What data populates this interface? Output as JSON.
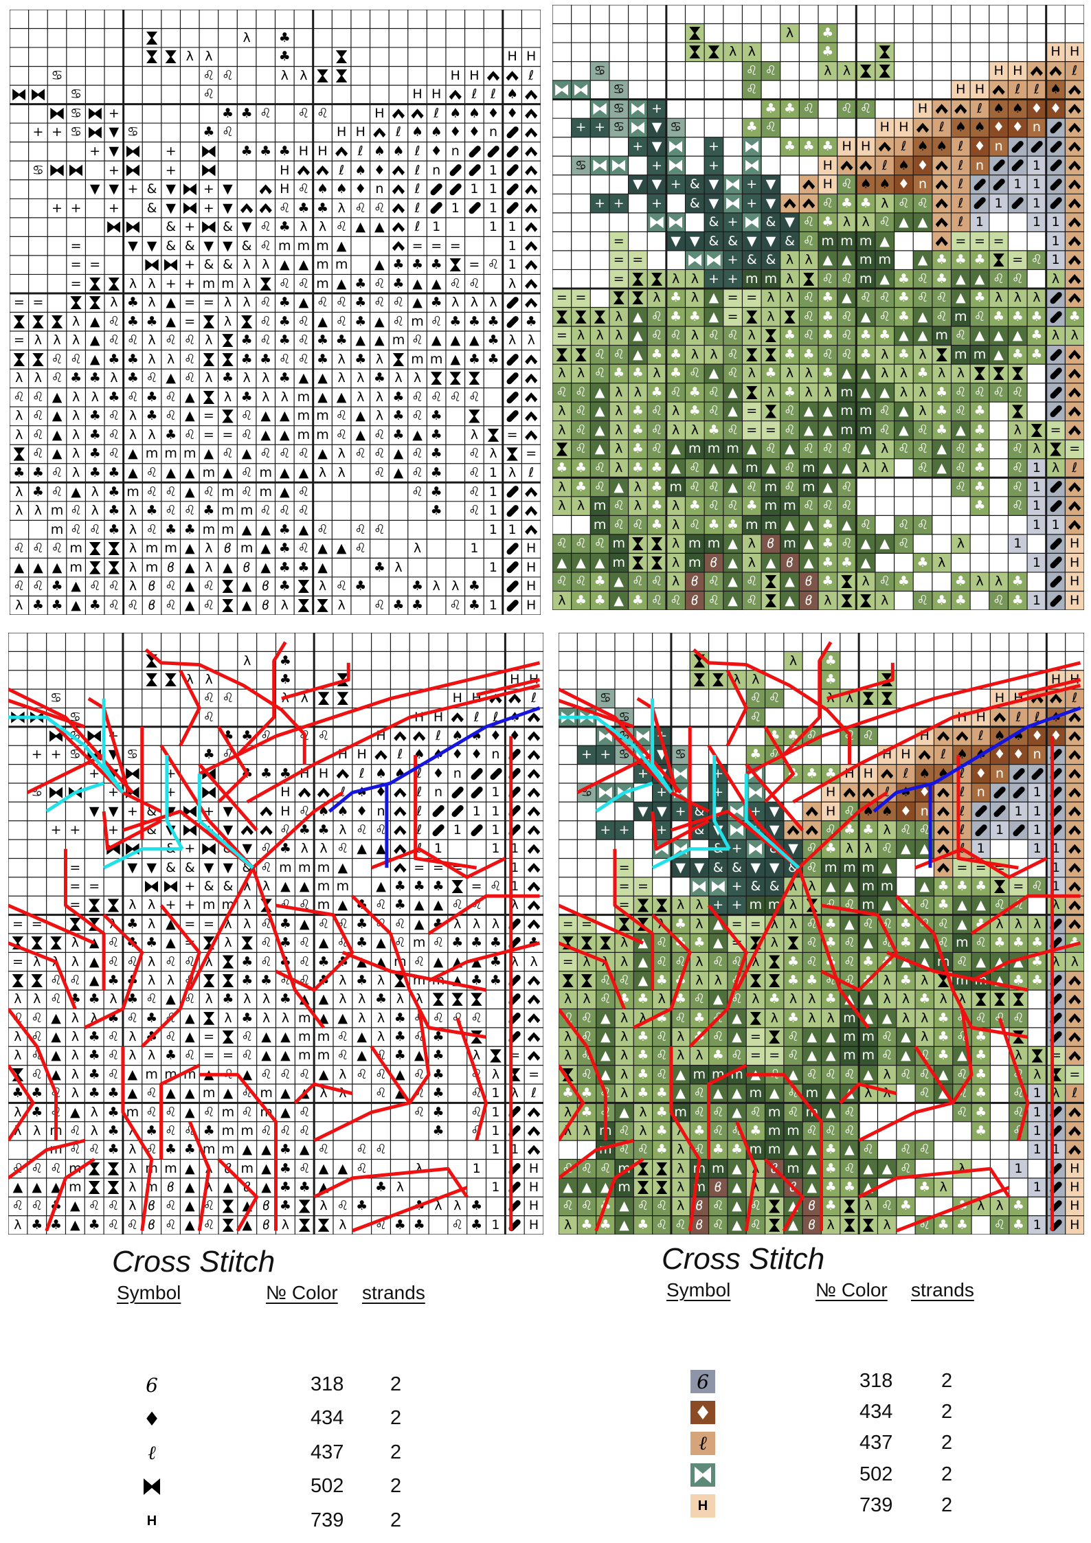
{
  "pattern": {
    "blank": "_",
    "rows": [
      "_ _ _ _ _ _ _ _ _ _ _ _ _ _ _ _ _ _ _ _ _ _ _ _ _ _ _ _",
      "_ _ _ _ _ _ _ ⧗ _ _ _ _ λ _ ♣ _ _ _ _ _ _ _ _ _ _ _ _ _",
      "_ _ _ _ _ _ _ ⧗ ⧗ λ λ _ _ _ ♣ _ _ ⧗ _ _ _ _ _ _ _ _ H H",
      "_ _ ♋ _ _ _ _ _ _ _ ♌ ♌ _ _ λ λ ⧗ ⧗ _ _ _ _ _ H H ^ ^ ℓ",
      "⧓ ⧓ _ ♋ _ _ _ _ _ _ ♌ _ _ _ _ _ _ _ _ _ _ H H ^ ℓ ℓ ♠ ^",
      "_ _ ⧓ ♋ ⧓ + _ _ _ _ _ ♣ ♣ ♌ _ ♌ ♌ _ _ H ^ ^ ℓ ♠ ♠ ♦ ♦ ^",
      "_ + + ♋ ⧓ ▼ ♋ _ _ _ ♣ ♌ _ _ _ _ _ H H ^ ℓ ♠ ♠ ♦ ♦ n / ^",
      "_ _ _ _ + ▼ ⧓ _ + _ ⧓ _ ♣ ♣ ♣ H H ^ ℓ ♠ ♠ ℓ ♦ n / / / ^",
      "_ ♋ ⧓ ⧓ _ + ⧓ _ + _ ⧓ _ _ _ H ^ ^ ℓ ♠ ♦ ^ ℓ n / / 1 / ^",
      "_ _ _ _ ▼ ▼ + & ▼ ⧓ + ▼ _ ^ H ♌ ♠ ♠ ♦ n ^ ℓ / / 1 1 / ^",
      "_ _ + + _ + _ & ▼ ⧓ + ▼ ^ ^ ♌ ♣ ♣ λ ♌ ♌ ^ ℓ / 1 / 1 / ^",
      "_ _ _ _ _ ⧓ ⧓ _ & + ⧓ & ▼ ♌ ♣ λ λ ♌ ▲ ▲ ^ ℓ 1 _ _ 1 1 ^",
      "_ _ _ = _ _ ▼ ▼ & & ▼ ▼ & ♌ m m m ▲ _ _ ^ = = = _ _ 1 ^",
      "_ _ _ = = _ _ ⧓ ⧓ + & & λ λ ▲ ▲ m m _ ▲ ♣ ♣ ♣ ⧗ = ♌ 1 ^",
      "_ _ _ = ⧗ ⧗ λ λ + + m m λ ⧗ ♌ ♌ m ▲ ♣ ♌ ♣ ▲ ▲ ♌ ♌ _ λ ^",
      "= = _ ⧗ ⧗ λ ♣ λ ▲ = = λ λ ♌ ♣ ▲ ♌ ♌ ♣ ♌ ♌ ▲ ♣ λ λ λ / ^",
      "⧗ ⧗ ⧗ λ ▲ ♌ ♣ ♣ ▲ = ⧗ λ ⧗ ♌ ♣ ♌ ▲ ♌ ♣ ▲ ♌ m ♌ ♣ ♣ ♣ / ♣",
      "= λ λ λ ▲ ♌ ♌ λ ♌ ♌ λ ⧗ ♣ ♌ ♣ ♌ ♣ ♣ ▲ ▲ m ♌ ▲ ▲ ▲ ♣ λ λ",
      "⧗ ⧗ ♌ ♌ ▲ ♣ ♣ λ λ ♌ ⧗ ⧗ ♣ ♣ ♌ ♌ ♣ λ ♣ λ ⧗ m m ▲ ♣ ♣ / ^",
      "λ λ ♌ ♣ ♣ λ ♣ ♌ ▲ ♌ λ ♣ λ λ ♣ ▲ ▲ λ λ ♣ λ λ ⧗ ⧗ ⧗ _ / ^",
      "♌ ♌ ▲ λ λ ♣ ♌ ♣ ♌ ▲ ⧗ λ ♣ λ λ m ▲ ▲ λ λ ♣ ♌ ♌ ♌ ♌ _ / ^",
      "λ ♌ ▲ λ ♣ ♌ λ ♣ ♌ ▲ = ⧗ ♌ ▲ ▲ m m ♌ ▲ λ ♣ ♌ ♣ _ ⧗ _ / ^",
      "λ ♌ ▲ λ ♣ ♌ λ λ ♣ ♌ = = ♌ ▲ ▲ m m ♌ ▲ ♌ ♣ ▲ ♣ _ λ ⧗ = ^",
      "⧗ ♌ ▲ λ ♣ ♌ ▲ m m m ▲ ♌ ▲ ♌ ♌ ♌ ▲ λ ♌ ♌ ▲ ♌ ♣ _ ♌ λ ⧗ =",
      "♣ ♣ ♌ λ ♣ ♣ ▲ ♌ ▲ ▲ m ▲ ♌ m ▲ ▲ λ λ _ ♌ ▲ ♌ ♣ _ ♌ 1 λ ℓ",
      "λ ♣ ♌ ▲ λ ♣ m ♌ ♌ ▲ ♌ m ♌ m ▲ ♌ _ _ _ _ _ ♌ ♣ _ ♌ 1 / ^",
      "λ λ m ♌ λ ♣ λ ♣ ♌ ♌ ♣ m m ♌ ♌ ♌ _ _ _ _ _ _ ♣ _ ♌ 1 / ^",
      "_ _ m ♌ ♌ ♣ λ ♌ ♣ ♣ m m ▲ ▲ ♣ ▲ ♌ _ ♌ ♌ _ _ _ _ _ 1 1 ^",
      "♌ ♌ ♌ m ⧗ ⧗ λ m m ▲ λ ϐ m ▲ ♣ ♌ ▲ ▲ ♌ _ _ λ _ _ 1 _ / H",
      "▲ ▲ ▲ m ⧗ ⧗ λ m ϐ ▲ λ ▲ ϐ ▲ ♣ ♣ ▲ _ _ ♣ λ _ _ _ _ 1 / H",
      "♌ ♌ ♣ ▲ ♌ ♌ λ ϐ ♌ ▲ ♌ ⧗ ▲ ϐ ♣ ⧗ λ ♌ ♣ _ _ ♣ λ λ ♣ _ / H",
      "λ ♣ ♣ ▲ ♣ ♌ ♌ ϐ ♌ ▲ ♌ ⧗ ▲ ϐ λ ⧗ ⧗ λ _ ♌ ♣ ♣ _ ♌ ♣ 1 / H"
    ],
    "symbol_colors": {
      "⧗": [
        "#b0c987",
        "#000000"
      ],
      "λ": [
        "#aec785",
        "#000000"
      ],
      "♣": [
        "#8cab62",
        "#ffffff"
      ],
      "♌": [
        "#78985a",
        "#ffffff"
      ],
      "▲": [
        "#4f6f3c",
        "#ffffff"
      ],
      "m": [
        "#36542f",
        "#ffffff"
      ],
      "=": [
        "#c8dca3",
        "#000000"
      ],
      "⧓": [
        "#5e8a78",
        "#ffffff"
      ],
      "♋": [
        "#8faa9e",
        "#000000"
      ],
      "+": [
        "#35594f",
        "#ffffff"
      ],
      "▼": [
        "#2d4b44",
        "#ffffff"
      ],
      "&": [
        "#2f4d45",
        "#ffffff"
      ],
      "^": [
        "#d8aa80",
        "#000000"
      ],
      "H": [
        "#f3d3b1",
        "#000000"
      ],
      "ℓ": [
        "#d5a47a",
        "#000000"
      ],
      "♠": [
        "#a0663a",
        "#000000"
      ],
      "♦": [
        "#8b4c25",
        "#ffffff"
      ],
      "n": [
        "#a86c3e",
        "#ffffff"
      ],
      "/": [
        "#aab1bf",
        "#000000"
      ],
      "1": [
        "#c8ccd8",
        "#000000"
      ],
      "ϐ": [
        "#7d5549",
        "#ffffff"
      ]
    },
    "backstitch_colors": {
      "main": "#ee1111",
      "accent1": "#22e0e8",
      "accent2": "#1515dd"
    }
  },
  "legend_bw": {
    "title": "Cross Stitch",
    "headers": {
      "symbol": "Symbol",
      "color": "№ Color",
      "strands": "strands"
    },
    "rows": [
      {
        "symbol": "6",
        "color": "318",
        "strands": "2"
      },
      {
        "symbol": "♦",
        "color": "434",
        "strands": "2"
      },
      {
        "symbol": "ℓ",
        "color": "437",
        "strands": "2"
      },
      {
        "symbol": "⧓",
        "color": "502",
        "strands": "2"
      },
      {
        "symbol": "H",
        "color": "739",
        "strands": "2"
      }
    ]
  },
  "legend_color": {
    "title": "Cross Stitch",
    "headers": {
      "symbol": "Symbol",
      "color": "№ Color",
      "strands": "strands"
    },
    "rows": [
      {
        "symbol": "6",
        "color": "318",
        "strands": "2",
        "swatch": "#8e95a8",
        "ink": "#000000"
      },
      {
        "symbol": "♦",
        "color": "434",
        "strands": "2",
        "swatch": "#8b4c25",
        "ink": "#ffffff"
      },
      {
        "symbol": "ℓ",
        "color": "437",
        "strands": "2",
        "swatch": "#d5a47a",
        "ink": "#000000"
      },
      {
        "symbol": "⧓",
        "color": "502",
        "strands": "2",
        "swatch": "#5e8a78",
        "ink": "#ffffff"
      },
      {
        "symbol": "H",
        "color": "739",
        "strands": "2",
        "swatch": "#f3d3b1",
        "ink": "#000000"
      }
    ]
  }
}
